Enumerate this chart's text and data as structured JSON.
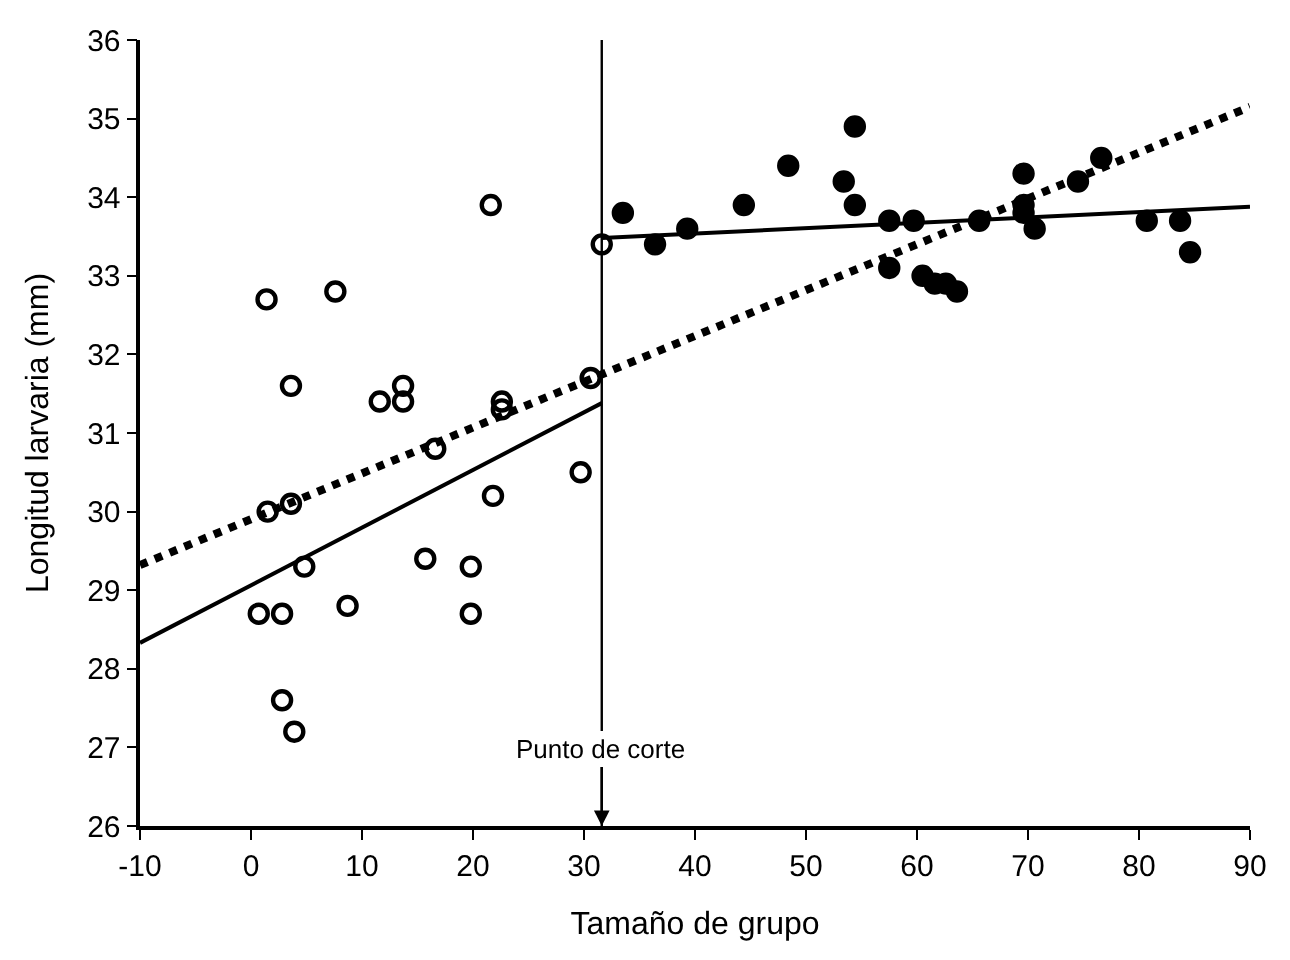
{
  "chart_data": {
    "type": "scatter",
    "xlabel": "Tamaño de grupo",
    "ylabel": "Longitud larvaria (mm)",
    "xlim": [
      -10,
      90
    ],
    "xticks": [
      -10,
      0,
      10,
      20,
      30,
      40,
      50,
      60,
      70,
      80,
      90
    ],
    "ylim": [
      26,
      36
    ],
    "yticks": [
      26,
      27,
      28,
      29,
      30,
      31,
      32,
      33,
      34,
      35,
      36
    ],
    "series": [
      {
        "color": "#000000",
        "marker": "circle",
        "x": [
          1.4,
          7.6,
          21.6,
          31.6,
          3.6,
          11.6,
          13.7,
          13.7,
          22.6,
          22.6,
          30.6,
          16.6,
          29.7,
          21.8,
          1.5,
          3.6,
          4.8,
          15.7,
          19.8,
          19.8,
          0.7,
          2.8,
          8.7,
          2.8,
          3.9
        ],
        "values": [
          32.7,
          32.8,
          33.9,
          33.4,
          31.6,
          31.4,
          31.6,
          31.4,
          31.4,
          31.3,
          31.7,
          30.8,
          30.5,
          30.2,
          30.0,
          30.1,
          29.3,
          29.4,
          29.3,
          28.7,
          28.7,
          28.7,
          28.8,
          27.6,
          27.2
        ]
      },
      {
        "color": "#000000",
        "marker": "circle",
        "x": [
          33.5,
          36.4,
          39.3,
          44.4,
          48.4,
          53.4,
          54.4,
          54.4,
          57.5,
          57.5,
          59.7,
          60.5,
          61.6,
          62.6,
          63.6,
          65.6,
          69.6,
          69.6,
          69.6,
          70.6,
          74.5,
          76.6,
          80.7,
          83.7,
          84.6
        ],
        "values": [
          33.8,
          33.4,
          33.6,
          33.9,
          34.4,
          34.2,
          34.9,
          33.9,
          33.7,
          33.1,
          33.7,
          33.0,
          32.9,
          32.9,
          32.8,
          33.7,
          34.3,
          33.9,
          33.8,
          33.6,
          34.2,
          34.5,
          33.7,
          33.7,
          33.3
        ]
      },
      {
        "type": "line",
        "color": "#000000",
        "marker": "none",
        "line_style": "solid",
        "x": [
          -10,
          31.6
        ],
        "values": [
          28.33,
          31.38
        ]
      },
      {
        "type": "line",
        "color": "#000000",
        "marker": "none",
        "line_style": "solid",
        "x": [
          31.6,
          90
        ],
        "values": [
          33.48,
          33.88
        ]
      },
      {
        "type": "line",
        "color": "#000000",
        "marker": "none",
        "line_style": "dotted",
        "x": [
          -10,
          90
        ],
        "values": [
          29.32,
          35.15
        ]
      }
    ],
    "ref_lines": [
      {
        "axis": "x",
        "value": 31.6,
        "label": "Punto de corte",
        "color": "#000000"
      }
    ]
  }
}
